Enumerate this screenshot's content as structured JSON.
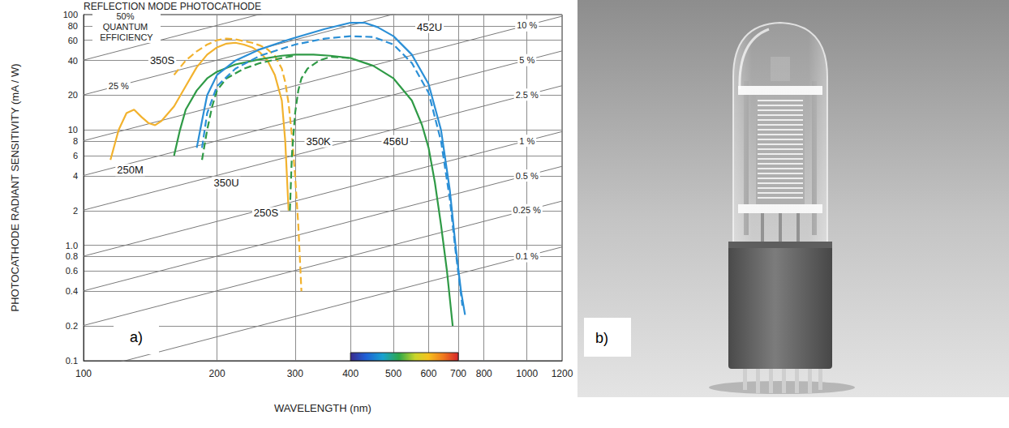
{
  "chart_data": {
    "type": "line",
    "title": "REFLECTION MODE PHOTOCATHODE",
    "panel_label": "a)",
    "x_label": "WAVELENGTH (nm)",
    "y_label": "PHOTOCATHODE RADIANT SENSITIVITY (mA / W)",
    "log": true,
    "grid": true,
    "xlim": [
      100,
      1200
    ],
    "xticks": [
      100,
      200,
      300,
      400,
      500,
      600,
      700,
      800,
      1000,
      1200
    ],
    "ylim": [
      0.1,
      100
    ],
    "yticks": [
      0.1,
      0.2,
      0.4,
      0.6,
      0.8,
      {
        "value": 1,
        "label": "1.0"
      },
      2,
      4,
      6,
      8,
      10,
      20,
      40,
      60,
      80,
      100
    ],
    "series": [
      {
        "name": "250M",
        "color": "#f2b22e",
        "line_style": "solid",
        "label_at": [
          118,
          4.5
        ],
        "x": [
          115,
          120,
          125,
          130,
          135,
          140,
          145,
          150,
          160,
          170,
          180,
          190,
          200,
          210,
          220,
          230,
          240,
          250,
          260,
          270,
          280,
          285,
          290
        ],
        "values": [
          5.5,
          10,
          14,
          15,
          13,
          11.5,
          11,
          12,
          16,
          24,
          35,
          45,
          52,
          56,
          57,
          55,
          52,
          47,
          40,
          30,
          18,
          8,
          2
        ]
      },
      {
        "name": "250S",
        "color": "#f2b22e",
        "line_style": "dashed",
        "label_at": [
          240,
          1.9
        ],
        "x": [
          160,
          170,
          180,
          190,
          200,
          210,
          220,
          230,
          240,
          250,
          260,
          270,
          280,
          285,
          290,
          295,
          300,
          305,
          310
        ],
        "values": [
          30,
          40,
          48,
          55,
          60,
          62,
          61,
          59,
          57,
          54,
          50,
          44,
          34,
          26,
          17,
          9,
          4,
          1.5,
          0.4
        ]
      },
      {
        "name": "350S",
        "color": "#2f9a46",
        "line_style": "solid",
        "label_at": [
          140,
          40
        ],
        "x": [
          160,
          165,
          170,
          180,
          190,
          200,
          220,
          250,
          280,
          300,
          330,
          360,
          400,
          450,
          500,
          550,
          580,
          600,
          620,
          640,
          660,
          680
        ],
        "values": [
          6,
          10,
          15,
          22,
          28,
          32,
          37,
          41,
          44,
          45,
          45,
          44,
          42,
          36,
          28,
          18,
          11,
          7,
          3.5,
          1.5,
          0.6,
          0.2
        ]
      },
      {
        "name": "350U",
        "color": "#2f9a46",
        "line_style": "dashed",
        "label_at": [
          195,
          3.5
        ],
        "x": [
          185,
          190,
          195,
          200,
          210,
          230,
          250,
          280,
          300
        ],
        "values": [
          5.5,
          10,
          16,
          22,
          28,
          34,
          38,
          42,
          44
        ]
      },
      {
        "name": "350K",
        "color": "#2f9a46",
        "line_style": "dashed",
        "label_at": [
          315,
          8
        ],
        "x": [
          292,
          295,
          300,
          305,
          310,
          320,
          340,
          360,
          400
        ],
        "values": [
          2,
          6,
          14,
          22,
          28,
          34,
          40,
          43,
          42
        ]
      },
      {
        "name": "452U",
        "color": "#2b8fd6",
        "line_style": "solid",
        "label_at": [
          560,
          78
        ],
        "x": [
          180,
          185,
          190,
          200,
          220,
          250,
          280,
          300,
          350,
          400,
          430,
          460,
          500,
          550,
          600,
          640,
          670,
          690,
          710,
          725
        ],
        "values": [
          7,
          12,
          20,
          30,
          40,
          50,
          58,
          63,
          75,
          85,
          85,
          78,
          65,
          45,
          25,
          10,
          3,
          1,
          0.4,
          0.25
        ]
      },
      {
        "name": "456U",
        "color": "#2b8fd6",
        "line_style": "dashed",
        "label_at": [
          470,
          8
        ],
        "x": [
          185,
          190,
          200,
          220,
          250,
          300,
          350,
          400,
          450,
          500,
          550,
          600,
          640,
          670,
          690,
          715
        ],
        "values": [
          7,
          14,
          24,
          34,
          44,
          55,
          62,
          65,
          64,
          55,
          38,
          21,
          8,
          2.5,
          0.9,
          0.3
        ]
      }
    ],
    "efficiency_lines": [
      {
        "label": "50% QUANTUM EFFICIENCY",
        "x": [
          100,
          1200
        ],
        "values": [
          40.3,
          483.9
        ],
        "label_at": [
          125,
          79
        ]
      },
      {
        "label": "25 %",
        "x": [
          100,
          1200
        ],
        "values": [
          20.16,
          241.9
        ],
        "label_at": [
          120,
          24.2
        ]
      },
      {
        "label": "10 %",
        "x": [
          100,
          1200
        ],
        "values": [
          8.06,
          96.8
        ],
        "label_at": [
          1000,
          80.6
        ]
      },
      {
        "label": "5 %",
        "x": [
          100,
          1200
        ],
        "values": [
          4.03,
          48.4
        ],
        "label_at": [
          1000,
          40.3
        ]
      },
      {
        "label": "2.5 %",
        "x": [
          100,
          1200
        ],
        "values": [
          2.02,
          24.2
        ],
        "label_at": [
          1000,
          20.2
        ]
      },
      {
        "label": "1 %",
        "x": [
          100,
          1200
        ],
        "values": [
          0.806,
          9.68
        ],
        "label_at": [
          1000,
          8.06
        ]
      },
      {
        "label": "0.5 %",
        "x": [
          100,
          1200
        ],
        "values": [
          0.403,
          4.84
        ],
        "label_at": [
          1000,
          4.03
        ]
      },
      {
        "label": "0.25 %",
        "x": [
          100,
          1200
        ],
        "values": [
          0.202,
          2.42
        ],
        "label_at": [
          1000,
          2.02
        ]
      },
      {
        "label": "0.1 %",
        "x": [
          100,
          1200
        ],
        "values": [
          0.0806,
          0.968
        ],
        "label_at": [
          1000,
          0.806
        ]
      }
    ],
    "visible_band": [
      400,
      700
    ]
  },
  "photo": {
    "panel_label": "b)"
  }
}
